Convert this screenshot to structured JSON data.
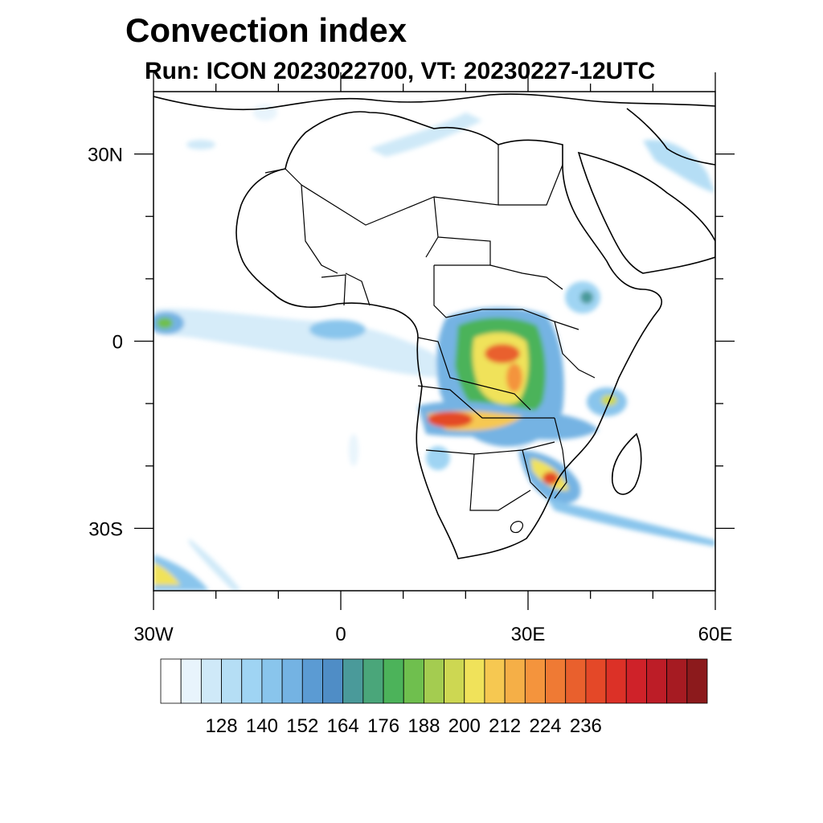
{
  "title": "Convection index",
  "subtitle": "Run: ICON 2023022700,  VT: 20230227-12UTC",
  "map": {
    "lon_range": [
      -30,
      60
    ],
    "lat_range": [
      -40,
      40
    ],
    "lon_ticks": [
      {
        "value": -30,
        "label": "30W"
      },
      {
        "value": 0,
        "label": "0"
      },
      {
        "value": 30,
        "label": "30E"
      },
      {
        "value": 60,
        "label": "60E"
      }
    ],
    "lat_ticks": [
      {
        "value": 30,
        "label": "30N"
      },
      {
        "value": 0,
        "label": "0"
      },
      {
        "value": -30,
        "label": "30S"
      }
    ]
  },
  "colorbar": {
    "colors": [
      "#ffffff",
      "#e8f4fc",
      "#cfe9f8",
      "#b5def5",
      "#9fd4f3",
      "#89c5ec",
      "#74b3e3",
      "#5b9bd3",
      "#4f8dc6",
      "#4a9a9a",
      "#4aa67a",
      "#4cb35a",
      "#6fbf4e",
      "#a4cc50",
      "#cdd752",
      "#f0e25a",
      "#f6c851",
      "#f5af47",
      "#f4943d",
      "#ef7a34",
      "#e9602d",
      "#e44828",
      "#dc3127",
      "#cf2229",
      "#bd1d27",
      "#a61b22",
      "#8c1a1c"
    ],
    "labels": [
      "128",
      "140",
      "152",
      "164",
      "176",
      "188",
      "200",
      "212",
      "224",
      "236"
    ]
  }
}
